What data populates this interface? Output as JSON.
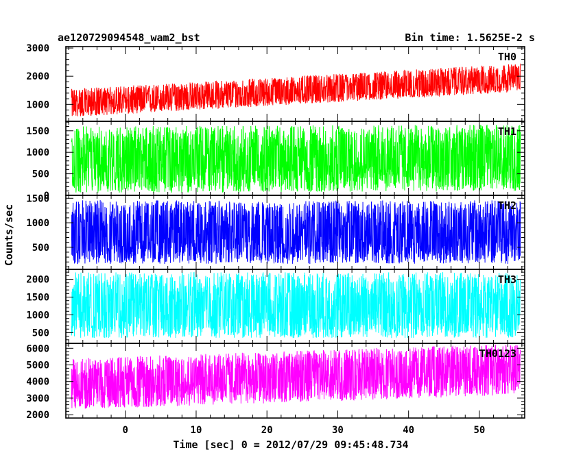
{
  "header": {
    "title": "ae120729094548_wam2_bst",
    "bin_time": "Bin time: 1.5625E-2 s"
  },
  "axes": {
    "ylabel": "Counts/sec",
    "xlabel": "Time [sec] 0 = 2012/07/29 09:45:48.734"
  },
  "chart_data": {
    "type": "line",
    "x_range": [
      -8.4,
      56.4
    ],
    "x_data_range": [
      -7.6,
      55.8
    ],
    "x_ticks": [
      0,
      10,
      20,
      30,
      40,
      50
    ],
    "x_minor_step": 2,
    "panels": [
      {
        "name": "TH0",
        "color": "#ff0000",
        "ylim": [
          400,
          3050
        ],
        "y_ticks": [
          1000,
          2000,
          3000
        ],
        "y_minor_step": 200,
        "trend": [
          [
            -7.6,
            1000
          ],
          [
            56,
            1900
          ]
        ],
        "spread_low": 450,
        "spread_high": 550
      },
      {
        "name": "TH1",
        "color": "#00ff00",
        "ylim": [
          0,
          1720
        ],
        "y_ticks": [
          0,
          500,
          1000,
          1500
        ],
        "y_minor_step": 100,
        "trend": [
          [
            -7.6,
            800
          ],
          [
            56,
            850
          ]
        ],
        "spread_low": 750,
        "spread_high": 800
      },
      {
        "name": "TH2",
        "color": "#0000ff",
        "ylim": [
          50,
          1560
        ],
        "y_ticks": [
          500,
          1000,
          1500
        ],
        "y_minor_step": 100,
        "trend": [
          [
            -7.6,
            760
          ],
          [
            56,
            760
          ]
        ],
        "spread_low": 600,
        "spread_high": 700
      },
      {
        "name": "TH3",
        "color": "#00ffff",
        "ylim": [
          200,
          2280
        ],
        "y_ticks": [
          500,
          1000,
          1500,
          2000
        ],
        "y_minor_step": 100,
        "trend": [
          [
            -7.6,
            1200
          ],
          [
            56,
            1200
          ]
        ],
        "spread_low": 850,
        "spread_high": 1000
      },
      {
        "name": "TH0123",
        "color": "#ff00ff",
        "ylim": [
          1800,
          6300
        ],
        "y_ticks": [
          2000,
          3000,
          4000,
          5000,
          6000
        ],
        "y_minor_step": 200,
        "trend": [
          [
            -7.6,
            3900
          ],
          [
            56,
            4800
          ]
        ],
        "spread_low": 1600,
        "spread_high": 1500
      }
    ]
  }
}
